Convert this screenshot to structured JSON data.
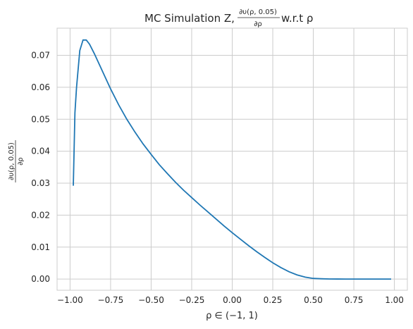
{
  "chart_data": {
    "type": "line",
    "title_prefix": "MC Simulation Z, ",
    "title_frac_num": "∂υ(ρ, 0.05)",
    "title_frac_den": "∂ρ",
    "title_suffix": " w.r.t ρ",
    "xlabel": "ρ ∈ (−1, 1)",
    "ylabel_num": "∂υ(ρ, 0.05)",
    "ylabel_den": "∂ρ",
    "xlim": [
      -1.08,
      1.08
    ],
    "ylim": [
      -0.0035,
      0.0785
    ],
    "xticks": [
      -1.0,
      -0.75,
      -0.5,
      -0.25,
      0.0,
      0.25,
      0.5,
      0.75,
      1.0
    ],
    "xtick_labels": [
      "−1.00",
      "−0.75",
      "−0.50",
      "−0.25",
      "0.00",
      "0.25",
      "0.50",
      "0.75",
      "1.00"
    ],
    "yticks": [
      0.0,
      0.01,
      0.02,
      0.03,
      0.04,
      0.05,
      0.06,
      0.07
    ],
    "ytick_labels": [
      "0.00",
      "0.01",
      "0.02",
      "0.03",
      "0.04",
      "0.05",
      "0.06",
      "0.07"
    ],
    "grid": true,
    "line_color": "#1f77b4",
    "series": [
      {
        "x": [
          -0.98,
          -0.97,
          -0.96,
          -0.94,
          -0.92,
          -0.9,
          -0.88,
          -0.85,
          -0.8,
          -0.75,
          -0.7,
          -0.65,
          -0.6,
          -0.55,
          -0.5,
          -0.45,
          -0.4,
          -0.35,
          -0.3,
          -0.25,
          -0.2,
          -0.15,
          -0.1,
          -0.05,
          0.0,
          0.05,
          0.1,
          0.15,
          0.2,
          0.25,
          0.3,
          0.35,
          0.4,
          0.45,
          0.5,
          0.55,
          0.6,
          0.65,
          0.7,
          0.75,
          0.8,
          0.85,
          0.9,
          0.95,
          0.98
        ],
        "y": [
          0.0292,
          0.052,
          0.06,
          0.0715,
          0.0748,
          0.0748,
          0.0735,
          0.0705,
          0.065,
          0.0595,
          0.0545,
          0.05,
          0.046,
          0.0423,
          0.039,
          0.0358,
          0.033,
          0.0303,
          0.0278,
          0.0255,
          0.0232,
          0.021,
          0.0188,
          0.0166,
          0.0145,
          0.0125,
          0.0105,
          0.0086,
          0.0068,
          0.0051,
          0.0036,
          0.0023,
          0.0013,
          0.0006,
          0.0002,
          0.0001,
          3e-05,
          1e-05,
          0.0,
          0.0,
          0.0,
          0.0,
          0.0,
          0.0,
          0.0
        ]
      }
    ]
  }
}
